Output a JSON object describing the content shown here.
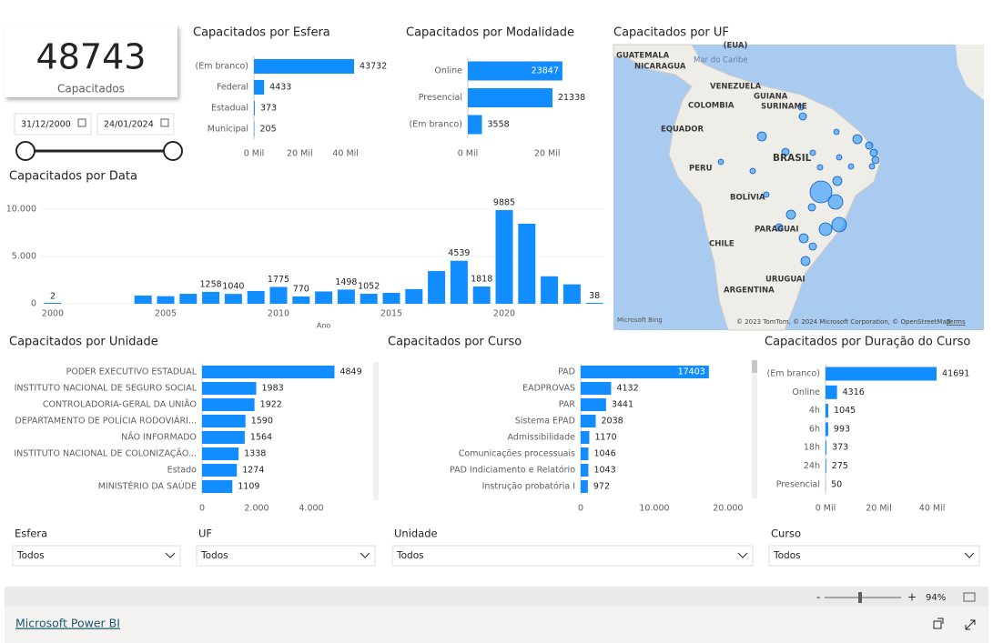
{
  "kpi": {
    "value": 48743,
    "label": "Capacitados"
  },
  "date_range": {
    "start": "31/12/2000",
    "end": "24/01/2024"
  },
  "map": {
    "title": "Capacitados por UF",
    "labels": [
      "(EUA)",
      "GUATEMALA",
      "NICARAGUA",
      "Mar do Caribe",
      "VENEZUELA",
      "GUIANA",
      "COLOMBIA",
      "SURINAME",
      "EQUADOR",
      "PERU",
      "BRASIL",
      "BOLÍVIA",
      "PARAGUAI",
      "CHILE",
      "URUGUAI",
      "ARGENTINA"
    ],
    "logo": "Microsoft Bing",
    "attribution": "© 2023 TomTom, © 2024 Microsoft Corporation, © OpenStreetMap",
    "terms": "Terms"
  },
  "chart_data": [
    {
      "type": "bar",
      "orientation": "horizontal",
      "title": "Capacitados por Esfera",
      "color": "#118DFF",
      "categories": [
        "(Em branco)",
        "Federal",
        "Estadual",
        "Municipal"
      ],
      "values": [
        43732,
        4433,
        373,
        205
      ],
      "xlim": [
        0,
        60000
      ],
      "xticks": [
        {
          "value": 0,
          "label": "0 Mil"
        },
        {
          "value": 20000,
          "label": "20 Mil"
        },
        {
          "value": 40000,
          "label": "40 Mil"
        }
      ]
    },
    {
      "type": "bar",
      "orientation": "horizontal",
      "title": "Capacitados por Modalidade",
      "color": "#118DFF",
      "categories": [
        "Online",
        "Presencial",
        "(Em branco)"
      ],
      "values": [
        23847,
        21338,
        3558
      ],
      "xlim": [
        0,
        28000
      ],
      "xticks": [
        {
          "value": 0,
          "label": "0 Mil"
        },
        {
          "value": 20000,
          "label": "20 Mil"
        }
      ]
    },
    {
      "type": "bar",
      "orientation": "vertical",
      "title": "Capacitados por Data",
      "color": "#118DFF",
      "grid": true,
      "xlabel": "Ano",
      "x": [
        2000,
        2004,
        2005,
        2006,
        2007,
        2008,
        2009,
        2010,
        2011,
        2012,
        2013,
        2014,
        2015,
        2016,
        2017,
        2018,
        2019,
        2020,
        2021,
        2022,
        2023,
        2024
      ],
      "values": [
        2,
        870,
        800,
        1050,
        1258,
        1040,
        1350,
        1775,
        770,
        1300,
        1498,
        1052,
        1150,
        1550,
        3450,
        4539,
        1818,
        9885,
        8450,
        2900,
        2050,
        38
      ],
      "value_labels": [
        "2",
        null,
        null,
        null,
        "1258",
        "1040",
        null,
        "1775",
        "770",
        null,
        "1498",
        "1052",
        null,
        null,
        null,
        "4539",
        "1818",
        "9885",
        null,
        null,
        null,
        "38"
      ],
      "xlim": [
        1999.5,
        2024.5
      ],
      "xticks": [
        2000,
        2005,
        2010,
        2015,
        2020
      ],
      "ylim": [
        0,
        12000
      ],
      "yticks": [
        0,
        {
          "value": 5000,
          "label": "5.000"
        },
        {
          "value": 10000,
          "label": "10.000"
        }
      ]
    },
    {
      "type": "bar",
      "orientation": "horizontal",
      "title": "Capacitados por Unidade",
      "color": "#118DFF",
      "categories": [
        "PODER EXECUTIVO ESTADUAL",
        "INSTITUTO NACIONAL DE SEGURO SOCIAL",
        "CONTROLADORIA-GERAL DA UNIÃO",
        "DEPARTAMENTO DE POLÍCIA RODOVIÁRI...",
        "NÃO INFORMADO",
        "INSTITUTO NACIONAL DE COLONIZAÇÃO...",
        "Estado",
        "MINISTÉRIO DA SAÚDE"
      ],
      "values": [
        4849,
        1983,
        1922,
        1590,
        1564,
        1338,
        1274,
        1109
      ],
      "xlim": [
        0,
        6500
      ],
      "xticks": [
        0,
        {
          "value": 2000,
          "label": "2.000"
        },
        {
          "value": 4000,
          "label": "4.000"
        }
      ]
    },
    {
      "type": "bar",
      "orientation": "horizontal",
      "title": "Capacitados por Curso",
      "color": "#118DFF",
      "categories": [
        "PAD",
        "EADPROVAS",
        "PAR",
        "Sistema EPAD",
        "Admissibilidade",
        "Comunicações processuais",
        "PAD Indiciamento e Relatório",
        "Instrução probatória I"
      ],
      "values": [
        17403,
        4132,
        3441,
        2038,
        1170,
        1046,
        1043,
        972
      ],
      "xlim": [
        0,
        21500
      ],
      "xticks": [
        0,
        {
          "value": 10000,
          "label": "10.000"
        },
        {
          "value": 20000,
          "label": "20.000"
        }
      ]
    },
    {
      "type": "bar",
      "orientation": "horizontal",
      "title": "Capacitados por Duração do Curso",
      "color": "#118DFF",
      "categories": [
        "(Em branco)",
        "Online",
        "4h",
        "6h",
        "18h",
        "24h",
        "Presencial"
      ],
      "values": [
        41691,
        4316,
        1045,
        993,
        373,
        275,
        50
      ],
      "xlim": [
        0,
        55000
      ],
      "xticks": [
        {
          "value": 0,
          "label": "0 Mil"
        },
        {
          "value": 20000,
          "label": "20 Mil"
        },
        {
          "value": 40000,
          "label": "40 Mil"
        }
      ]
    }
  ],
  "slicers": [
    {
      "label": "Esfera",
      "value": "Todos"
    },
    {
      "label": "UF",
      "value": "Todos"
    },
    {
      "label": "Unidade",
      "value": "Todos"
    },
    {
      "label": "Curso",
      "value": "Todos"
    }
  ],
  "footer": {
    "zoom": "94%",
    "brand": "Microsoft Power BI"
  }
}
